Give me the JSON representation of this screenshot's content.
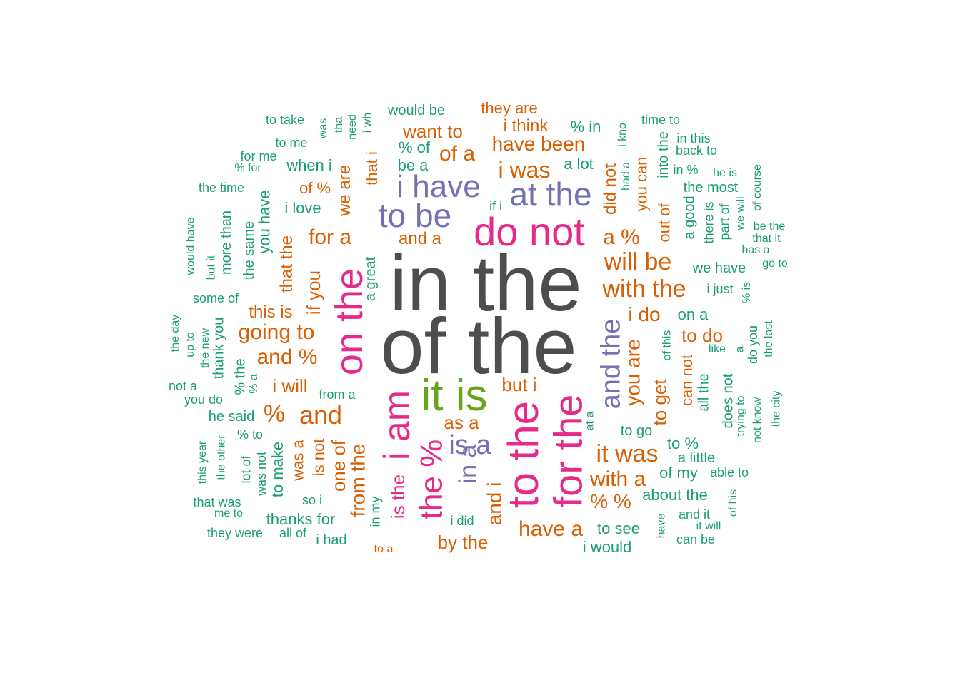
{
  "palette": {
    "gray": "#4d4d4d",
    "green": "#1b9e77",
    "orange": "#d95f02",
    "purple": "#7570b3",
    "magenta": "#e7298a",
    "olive": "#66a61e"
  },
  "words": [
    {
      "text": "in the",
      "color": "gray",
      "weight": 100
    },
    {
      "text": "of the",
      "color": "gray",
      "weight": 100
    },
    {
      "text": "to the",
      "color": "magenta",
      "weight": 50
    },
    {
      "text": "for the",
      "color": "magenta",
      "weight": 50
    },
    {
      "text": "on the",
      "color": "magenta",
      "weight": 44
    },
    {
      "text": "i am",
      "color": "magenta",
      "weight": 44
    },
    {
      "text": "the %",
      "color": "magenta",
      "weight": 40
    },
    {
      "text": "do not",
      "color": "magenta",
      "weight": 40
    },
    {
      "text": "it is",
      "color": "olive",
      "weight": 40
    },
    {
      "text": "i have",
      "color": "purple",
      "weight": 32
    },
    {
      "text": "to be",
      "color": "purple",
      "weight": 32
    },
    {
      "text": "at the",
      "color": "purple",
      "weight": 32
    },
    {
      "text": "and the",
      "color": "purple",
      "weight": 30
    },
    {
      "text": "is a",
      "color": "purple",
      "weight": 28
    },
    {
      "text": "in a",
      "color": "purple",
      "weight": 26
    },
    {
      "text": "and i",
      "color": "orange",
      "weight": 22
    },
    {
      "text": "you are",
      "color": "orange",
      "weight": 22
    },
    {
      "text": "it was",
      "color": "orange",
      "weight": 22
    },
    {
      "text": "will be",
      "color": "orange",
      "weight": 22
    },
    {
      "text": "with the",
      "color": "orange",
      "weight": 22
    },
    {
      "text": "and",
      "color": "orange",
      "weight": 22
    },
    {
      "text": "%",
      "color": "orange",
      "weight": 22
    },
    {
      "text": "i was",
      "color": "orange",
      "weight": 20
    },
    {
      "text": "have a",
      "color": "orange",
      "weight": 19
    },
    {
      "text": "with a",
      "color": "orange",
      "weight": 19
    },
    {
      "text": "for a",
      "color": "orange",
      "weight": 19
    },
    {
      "text": "going to",
      "color": "orange",
      "weight": 18
    },
    {
      "text": "and %",
      "color": "orange",
      "weight": 18
    },
    {
      "text": "to get",
      "color": "orange",
      "weight": 18
    },
    {
      "text": "from the",
      "color": "orange",
      "weight": 18
    },
    {
      "text": "one of",
      "color": "orange",
      "weight": 18
    },
    {
      "text": "is the",
      "color": "magenta",
      "weight": 18
    },
    {
      "text": "a %",
      "color": "orange",
      "weight": 18
    },
    {
      "text": "of a",
      "color": "orange",
      "weight": 18
    },
    {
      "text": "if you",
      "color": "orange",
      "weight": 17
    },
    {
      "text": "we are",
      "color": "orange",
      "weight": 17
    },
    {
      "text": "have been",
      "color": "orange",
      "weight": 17
    },
    {
      "text": "want to",
      "color": "orange",
      "weight": 17
    },
    {
      "text": "i think",
      "color": "orange",
      "weight": 16
    },
    {
      "text": "i do",
      "color": "orange",
      "weight": 17
    },
    {
      "text": "did not",
      "color": "orange",
      "weight": 17
    },
    {
      "text": "you can",
      "color": "orange",
      "weight": 16
    },
    {
      "text": "that i",
      "color": "orange",
      "weight": 16
    },
    {
      "text": "by the",
      "color": "orange",
      "weight": 17
    },
    {
      "text": "can not",
      "color": "orange",
      "weight": 16
    },
    {
      "text": "% %",
      "color": "orange",
      "weight": 16
    },
    {
      "text": "to do",
      "color": "orange",
      "weight": 16
    },
    {
      "text": "as a",
      "color": "orange",
      "weight": 16
    },
    {
      "text": "but i",
      "color": "orange",
      "weight": 16
    },
    {
      "text": "this is",
      "color": "orange",
      "weight": 16
    },
    {
      "text": "i will",
      "color": "orange",
      "weight": 16
    },
    {
      "text": "and a",
      "color": "orange",
      "weight": 16
    },
    {
      "text": "that the",
      "color": "orange",
      "weight": 16
    },
    {
      "text": "is not",
      "color": "orange",
      "weight": 16
    },
    {
      "text": "was a",
      "color": "orange",
      "weight": 15
    },
    {
      "text": "out of",
      "color": "orange",
      "weight": 15
    },
    {
      "text": "of %",
      "color": "orange",
      "weight": 15
    },
    {
      "text": "to make",
      "color": "green",
      "weight": 14
    },
    {
      "text": "thanks for",
      "color": "green",
      "weight": 14
    },
    {
      "text": "to see",
      "color": "green",
      "weight": 14
    },
    {
      "text": "about the",
      "color": "green",
      "weight": 14
    },
    {
      "text": "of my",
      "color": "green",
      "weight": 14
    },
    {
      "text": "to %",
      "color": "green",
      "weight": 14
    },
    {
      "text": "a little",
      "color": "green",
      "weight": 14
    },
    {
      "text": "we have",
      "color": "green",
      "weight": 14
    },
    {
      "text": "on a",
      "color": "green",
      "weight": 14
    },
    {
      "text": "a lot",
      "color": "green",
      "weight": 14
    },
    {
      "text": "be a",
      "color": "green",
      "weight": 14
    },
    {
      "text": "% of",
      "color": "green",
      "weight": 14
    },
    {
      "text": "% in",
      "color": "green",
      "weight": 14
    },
    {
      "text": "when i",
      "color": "green",
      "weight": 14
    },
    {
      "text": "i love",
      "color": "green",
      "weight": 14
    },
    {
      "text": "a great",
      "color": "green",
      "weight": 13
    },
    {
      "text": "you have",
      "color": "green",
      "weight": 14
    },
    {
      "text": "the same",
      "color": "green",
      "weight": 13
    },
    {
      "text": "more than",
      "color": "green",
      "weight": 13
    },
    {
      "text": "the most",
      "color": "green",
      "weight": 13
    },
    {
      "text": "a good",
      "color": "green",
      "weight": 13
    },
    {
      "text": "all the",
      "color": "green",
      "weight": 13
    },
    {
      "text": "does not",
      "color": "green",
      "weight": 13
    },
    {
      "text": "to go",
      "color": "green",
      "weight": 13
    },
    {
      "text": "he said",
      "color": "green",
      "weight": 13
    },
    {
      "text": "% the",
      "color": "green",
      "weight": 13
    },
    {
      "text": "thank you",
      "color": "green",
      "weight": 13
    },
    {
      "text": "into the",
      "color": "green",
      "weight": 13
    },
    {
      "text": "time to",
      "color": "green",
      "weight": 12
    },
    {
      "text": "i just",
      "color": "green",
      "weight": 12
    },
    {
      "text": "there is",
      "color": "green",
      "weight": 12
    },
    {
      "text": "part of",
      "color": "green",
      "weight": 12
    },
    {
      "text": "in %",
      "color": "green",
      "weight": 12
    },
    {
      "text": "back to",
      "color": "green",
      "weight": 12
    },
    {
      "text": "in this",
      "color": "green",
      "weight": 12
    },
    {
      "text": "to take",
      "color": "green",
      "weight": 12
    },
    {
      "text": "to me",
      "color": "green",
      "weight": 12
    },
    {
      "text": "for me",
      "color": "green",
      "weight": 11
    },
    {
      "text": "% for",
      "color": "green",
      "weight": 11
    },
    {
      "text": "the time",
      "color": "green",
      "weight": 11
    },
    {
      "text": "would have",
      "color": "green",
      "weight": 11
    },
    {
      "text": "but it",
      "color": "green",
      "weight": 11
    },
    {
      "text": "some of",
      "color": "green",
      "weight": 12
    },
    {
      "text": "the day",
      "color": "green",
      "weight": 11
    },
    {
      "text": "up to",
      "color": "green",
      "weight": 11
    },
    {
      "text": "the new",
      "color": "green",
      "weight": 11
    },
    {
      "text": "not a",
      "color": "green",
      "weight": 11
    },
    {
      "text": "you do",
      "color": "green",
      "weight": 11
    },
    {
      "text": "from a",
      "color": "green",
      "weight": 11
    },
    {
      "text": "% a",
      "color": "green",
      "weight": 11
    },
    {
      "text": "% to",
      "color": "green",
      "weight": 12
    },
    {
      "text": "this year",
      "color": "green",
      "weight": 11
    },
    {
      "text": "the other",
      "color": "green",
      "weight": 11
    },
    {
      "text": "lot of",
      "color": "green",
      "weight": 12
    },
    {
      "text": "was not",
      "color": "green",
      "weight": 12
    },
    {
      "text": "so i",
      "color": "green",
      "weight": 12
    },
    {
      "text": "that was",
      "color": "green",
      "weight": 11
    },
    {
      "text": "me to",
      "color": "green",
      "weight": 11
    },
    {
      "text": "they were",
      "color": "green",
      "weight": 11
    },
    {
      "text": "all of",
      "color": "green",
      "weight": 11
    },
    {
      "text": "i had",
      "color": "green",
      "weight": 12
    },
    {
      "text": "in my",
      "color": "green",
      "weight": 12
    },
    {
      "text": "i did",
      "color": "green",
      "weight": 11
    },
    {
      "text": "at a",
      "color": "green",
      "weight": 11
    },
    {
      "text": "if i",
      "color": "green",
      "weight": 11
    },
    {
      "text": "he is",
      "color": "green",
      "weight": 11
    },
    {
      "text": "of course",
      "color": "green",
      "weight": 11
    },
    {
      "text": "we will",
      "color": "green",
      "weight": 11
    },
    {
      "text": "be the",
      "color": "green",
      "weight": 11
    },
    {
      "text": "that it",
      "color": "green",
      "weight": 11
    },
    {
      "text": "has a",
      "color": "green",
      "weight": 11
    },
    {
      "text": "go to",
      "color": "green",
      "weight": 11
    },
    {
      "text": "% is",
      "color": "green",
      "weight": 11
    },
    {
      "text": "of this",
      "color": "green",
      "weight": 11
    },
    {
      "text": "like",
      "color": "green",
      "weight": 11
    },
    {
      "text": "a",
      "color": "green",
      "weight": 11
    },
    {
      "text": "do you",
      "color": "green",
      "weight": 12
    },
    {
      "text": "the last",
      "color": "green",
      "weight": 11
    },
    {
      "text": "trying to",
      "color": "green",
      "weight": 11
    },
    {
      "text": "not know",
      "color": "green",
      "weight": 11
    },
    {
      "text": "the city",
      "color": "green",
      "weight": 11
    },
    {
      "text": "able to",
      "color": "green",
      "weight": 11
    },
    {
      "text": "of his",
      "color": "green",
      "weight": 11
    },
    {
      "text": "and it",
      "color": "green",
      "weight": 11
    },
    {
      "text": "it will",
      "color": "green",
      "weight": 11
    },
    {
      "text": "can be",
      "color": "green",
      "weight": 11
    },
    {
      "text": "have",
      "color": "green",
      "weight": 11
    },
    {
      "text": "i would",
      "color": "green",
      "weight": 12
    },
    {
      "text": "had a",
      "color": "green",
      "weight": 11
    },
    {
      "text": "i kno",
      "color": "green",
      "weight": 11
    },
    {
      "text": "was",
      "color": "green",
      "weight": 11
    },
    {
      "text": "tha",
      "color": "green",
      "weight": 11
    },
    {
      "text": "need",
      "color": "green",
      "weight": 11
    },
    {
      "text": "i wh",
      "color": "green",
      "weight": 11
    },
    {
      "text": "would be",
      "color": "green",
      "weight": 12
    },
    {
      "text": "they are",
      "color": "orange",
      "weight": 14
    },
    {
      "text": "to a",
      "color": "orange",
      "weight": 12
    }
  ]
}
